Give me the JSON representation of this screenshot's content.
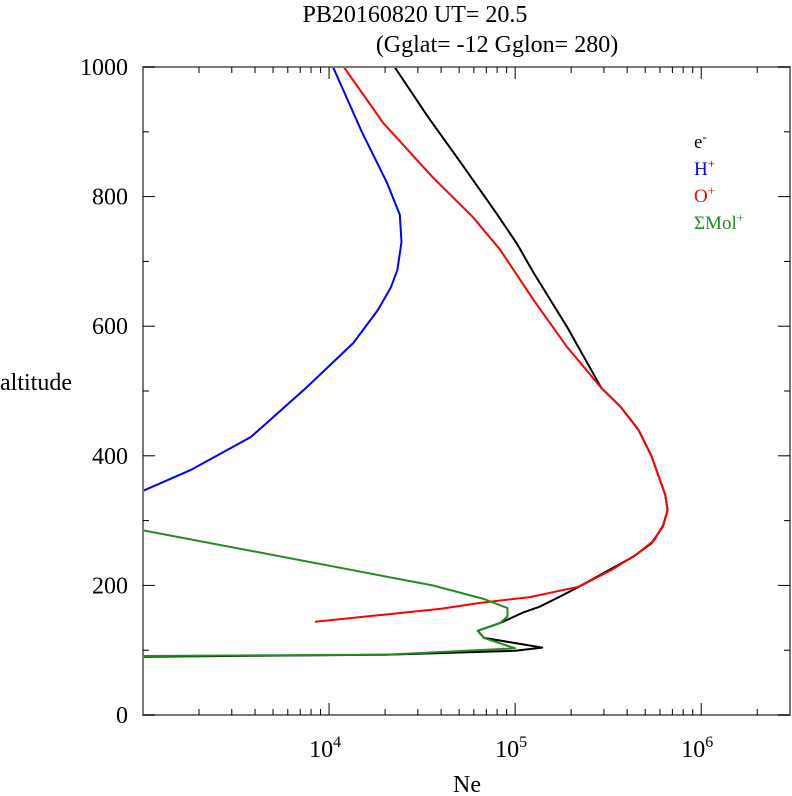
{
  "chart_data": {
    "type": "line",
    "title_line1": "PB20160820   UT=  20.5",
    "title_line2": "(Gglat= -12   Gglon=  280)",
    "xlabel": "Ne",
    "ylabel": "altitude",
    "xscale": "log",
    "xlim": [
      1000,
      3000000
    ],
    "ylim": [
      0,
      1000
    ],
    "grid": false,
    "legend_placement": "top-right",
    "x_tick_labels": [
      {
        "value": 10000,
        "base": "10",
        "exp": "4"
      },
      {
        "value": 100000,
        "base": "10",
        "exp": "5"
      },
      {
        "value": 1000000,
        "base": "10",
        "exp": "6"
      }
    ],
    "y_ticks": [
      0,
      200,
      400,
      600,
      800,
      1000
    ],
    "y_tick_labels": [
      "0",
      "200",
      "400",
      "600",
      "800",
      "1000"
    ],
    "y_minor_step": 100,
    "series": [
      {
        "name": "e-",
        "label_base": "e",
        "label_sup": "-",
        "color": "#000000",
        "points": [
          [
            1000,
            90
          ],
          [
            20000,
            93
          ],
          [
            100000,
            99
          ],
          [
            140000,
            104
          ],
          [
            68000,
            119
          ],
          [
            63000,
            130
          ],
          [
            83000,
            142
          ],
          [
            91000,
            147
          ],
          [
            110000,
            158
          ],
          [
            135000,
            167
          ],
          [
            175000,
            183
          ],
          [
            220000,
            198
          ],
          [
            330000,
            226
          ],
          [
            430000,
            244
          ],
          [
            540000,
            265
          ],
          [
            620000,
            290
          ],
          [
            660000,
            316
          ],
          [
            640000,
            340
          ],
          [
            600000,
            363
          ],
          [
            540000,
            400
          ],
          [
            460000,
            440
          ],
          [
            370000,
            475
          ],
          [
            290000,
            505
          ],
          [
            190000,
            599
          ],
          [
            126000,
            682
          ],
          [
            102000,
            728
          ],
          [
            79000,
            775
          ],
          [
            50000,
            856
          ],
          [
            34000,
            923
          ],
          [
            22500,
            1000
          ]
        ]
      },
      {
        "name": "H+",
        "label_base": "H",
        "label_sup": "+",
        "color": "#0000ff",
        "points": [
          [
            1000,
            346
          ],
          [
            1800,
            378
          ],
          [
            3800,
            429
          ],
          [
            7600,
            506
          ],
          [
            13500,
            574
          ],
          [
            18300,
            625
          ],
          [
            21500,
            660
          ],
          [
            23300,
            687
          ],
          [
            24500,
            730
          ],
          [
            24000,
            772
          ],
          [
            20500,
            821
          ],
          [
            15000,
            900
          ],
          [
            10500,
            1000
          ]
        ]
      },
      {
        "name": "O+",
        "label_base": "O",
        "label_sup": "+",
        "color": "#ff0000",
        "points": [
          [
            8400,
            144
          ],
          [
            20000,
            155
          ],
          [
            40000,
            164
          ],
          [
            65000,
            173
          ],
          [
            120000,
            182
          ],
          [
            220000,
            198
          ],
          [
            330000,
            224
          ],
          [
            450000,
            248
          ],
          [
            560000,
            270
          ],
          [
            630000,
            295
          ],
          [
            660000,
            316
          ],
          [
            640000,
            340
          ],
          [
            600000,
            363
          ],
          [
            540000,
            400
          ],
          [
            460000,
            440
          ],
          [
            370000,
            475
          ],
          [
            290000,
            505
          ],
          [
            190000,
            568
          ],
          [
            126000,
            640
          ],
          [
            83000,
            718
          ],
          [
            59000,
            769
          ],
          [
            36000,
            830
          ],
          [
            19500,
            914
          ],
          [
            12000,
            1000
          ]
        ]
      },
      {
        "name": "ΣMol+",
        "label_base": "ΣMol",
        "label_sup": "+",
        "color": "#228b22",
        "points": [
          [
            1000,
            285
          ],
          [
            36000,
            200
          ],
          [
            68000,
            179
          ],
          [
            91000,
            165
          ],
          [
            91000,
            152
          ],
          [
            83000,
            142
          ],
          [
            63000,
            130
          ],
          [
            68000,
            119
          ],
          [
            100000,
            103
          ],
          [
            20000,
            93
          ],
          [
            1000,
            91
          ]
        ]
      }
    ]
  }
}
